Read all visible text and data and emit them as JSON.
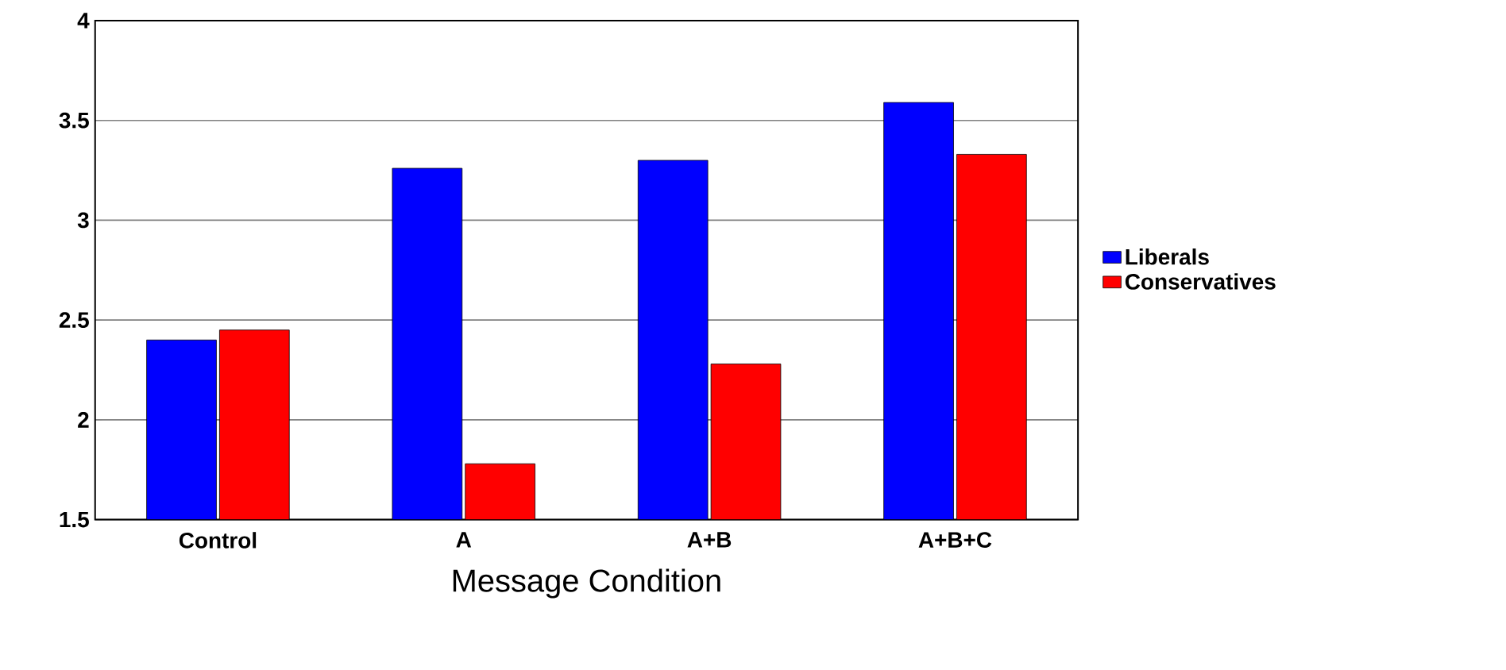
{
  "chart_data": {
    "type": "bar",
    "xlabel": "Message Condition",
    "categories": [
      "Control",
      "A",
      "A+B",
      "A+B+C"
    ],
    "series": [
      {
        "name": "Liberals",
        "color": "#0000ff",
        "values": [
          2.4,
          3.26,
          3.3,
          3.59
        ]
      },
      {
        "name": "Conservatives",
        "color": "#ff0000",
        "values": [
          2.45,
          1.78,
          2.28,
          3.33
        ]
      }
    ],
    "ylim": [
      1.5,
      4
    ],
    "yticks": [
      1.5,
      2,
      2.5,
      3,
      3.5,
      4
    ],
    "grid": "y",
    "legend": "right"
  }
}
